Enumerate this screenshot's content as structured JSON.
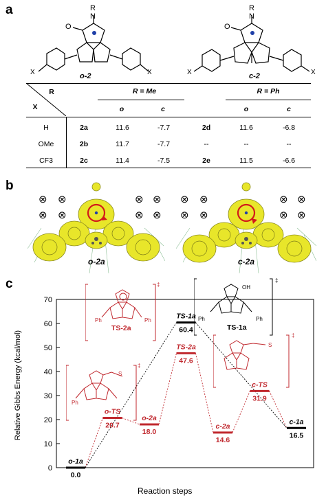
{
  "panels": {
    "a": "a",
    "b": "b",
    "c": "c"
  },
  "panel_a": {
    "structure_labels": [
      "o-2",
      "c-2"
    ],
    "atom_labels": {
      "R": "R",
      "N": "N",
      "O": "O",
      "S": "S",
      "X": "X"
    },
    "table": {
      "corner_top": "R",
      "corner_bottom": "X",
      "group_headers": [
        "R = Me",
        "R = Ph"
      ],
      "sub_headers": [
        "o",
        "c",
        "o",
        "c"
      ],
      "rows": [
        {
          "x": "H",
          "cmpd1": "2a",
          "o1": "11.6",
          "c1": "-7.7",
          "cmpd2": "2d",
          "o2": "11.6",
          "c2": "-6.8"
        },
        {
          "x": "OMe",
          "cmpd1": "2b",
          "o1": "11.7",
          "c1": "-7.7",
          "cmpd2": "--",
          "o2": "--",
          "c2": "--"
        },
        {
          "x": "CF3",
          "cmpd1": "2c",
          "o1": "11.4",
          "c1": "-7.5",
          "cmpd2": "2e",
          "o2": "11.5",
          "c2": "-6.6"
        }
      ]
    }
  },
  "panel_b": {
    "labels": [
      "o-2a",
      "c-2a"
    ],
    "field_symbol": "⊗"
  },
  "chart_data": {
    "type": "line",
    "ylabel": "Relative Gibbs Energy (kcal/mol)",
    "xlabel": "Reaction steps",
    "ylim": [
      0,
      70
    ],
    "yticks": [
      0,
      10,
      20,
      30,
      40,
      50,
      60,
      70
    ],
    "levels": [
      {
        "name": "o-1a",
        "value": 0.0,
        "value_label": "0.0",
        "step": 1,
        "color": "#000000"
      },
      {
        "name": "o-TS",
        "value": 20.7,
        "value_label": "20.7",
        "step": 2,
        "color": "#c0272d"
      },
      {
        "name": "o-2a",
        "value": 18.0,
        "value_label": "18.0",
        "step": 3,
        "color": "#c0272d"
      },
      {
        "name": "TS-1a",
        "value": 60.4,
        "value_label": "60.4",
        "step": 4,
        "color": "#000000"
      },
      {
        "name": "TS-2a",
        "value": 47.6,
        "value_label": "47.6",
        "step": 4,
        "color": "#c0272d"
      },
      {
        "name": "c-2a",
        "value": 14.6,
        "value_label": "14.6",
        "step": 5,
        "color": "#c0272d"
      },
      {
        "name": "c-TS",
        "value": 31.9,
        "value_label": "31.9",
        "step": 6,
        "color": "#c0272d"
      },
      {
        "name": "c-1a",
        "value": 16.5,
        "value_label": "16.5",
        "step": 7,
        "color": "#000000"
      }
    ],
    "connections": [
      {
        "from": "o-1a",
        "to": "o-TS",
        "color": "#c0272d"
      },
      {
        "from": "o-TS",
        "to": "o-2a",
        "color": "#c0272d"
      },
      {
        "from": "o-2a",
        "to": "TS-2a",
        "color": "#c0272d"
      },
      {
        "from": "TS-2a",
        "to": "c-2a",
        "color": "#c0272d"
      },
      {
        "from": "c-2a",
        "to": "c-TS",
        "color": "#c0272d"
      },
      {
        "from": "c-TS",
        "to": "c-1a",
        "color": "#c0272d"
      },
      {
        "from": "o-1a",
        "to": "TS-1a",
        "color": "#000000"
      },
      {
        "from": "TS-1a",
        "to": "c-1a",
        "color": "#000000"
      }
    ],
    "insets": [
      {
        "label": "TS-2a",
        "color": "#c0272d",
        "dagger": "‡"
      },
      {
        "label": "TS-1a",
        "color": "#000000",
        "dagger": "‡"
      },
      {
        "label": "",
        "color": "#c0272d",
        "dagger": "‡"
      },
      {
        "label": "",
        "color": "#c0272d",
        "dagger": "‡"
      }
    ],
    "inset_text": {
      "ph": "Ph",
      "oh": "OH",
      "o": "O",
      "n": "N",
      "s": "S",
      "h": "H",
      "so": "S"
    }
  },
  "colors": {
    "red": "#c0272d",
    "yellow": "#e8e62a",
    "black": "#000000"
  }
}
